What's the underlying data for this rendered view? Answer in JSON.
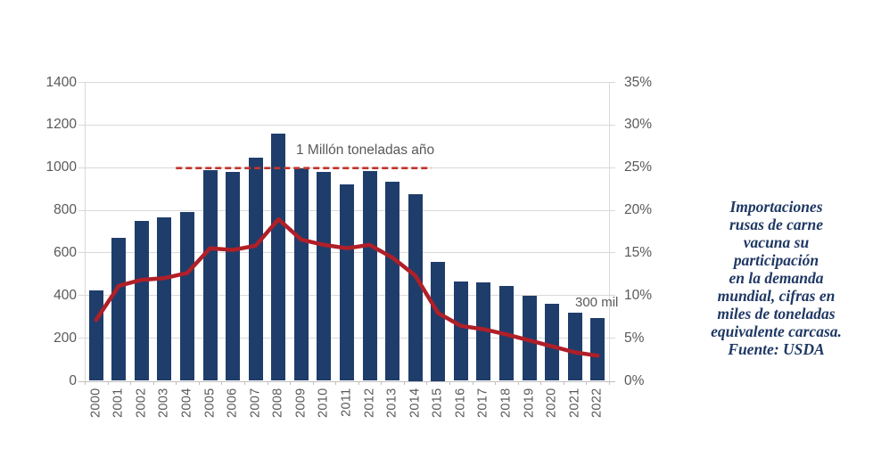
{
  "chart_data": {
    "type": "bar",
    "combo": "bar+line",
    "categories": [
      "2000",
      "2001",
      "2002",
      "2003",
      "2004",
      "2005",
      "2006",
      "2007",
      "2008",
      "2009",
      "2010",
      "2011",
      "2012",
      "2013",
      "2014",
      "2015",
      "2016",
      "2017",
      "2018",
      "2019",
      "2020",
      "2021",
      "2022"
    ],
    "series": [
      {
        "name": "importaciones-miles-toneladas",
        "type": "bar",
        "axis": "left",
        "values": [
          425,
          670,
          750,
          765,
          790,
          990,
          978,
          1045,
          1160,
          997,
          978,
          920,
          985,
          935,
          875,
          560,
          468,
          463,
          445,
          398,
          360,
          320,
          296
        ]
      },
      {
        "name": "participacion-demanda-mundial-pct",
        "type": "line",
        "axis": "right",
        "values": [
          7.2,
          11.2,
          11.9,
          12.1,
          12.7,
          15.6,
          15.4,
          15.9,
          19.0,
          16.6,
          16.0,
          15.6,
          16.0,
          14.5,
          12.4,
          8.0,
          6.5,
          6.1,
          5.5,
          4.8,
          4.1,
          3.4,
          3.0
        ]
      }
    ],
    "left_axis": {
      "min": 0,
      "max": 1400,
      "tick_step": 200,
      "tick_labels_top_to_bottom": [
        "1400",
        "1200",
        "1000",
        "800",
        "600",
        "400",
        "200",
        "0"
      ]
    },
    "right_axis": {
      "min": 0,
      "max": 35,
      "tick_step": 5,
      "tick_labels_top_to_bottom": [
        "35%",
        "30%",
        "25%",
        "20%",
        "15%",
        "10%",
        "5%",
        "0%"
      ]
    },
    "grid": true,
    "legend": false,
    "reference_line": {
      "value": 1000,
      "label": "1 Millón toneladas año",
      "start_category": "2004",
      "end_category": "2014"
    },
    "annotation_300mil": {
      "text": "300 mil"
    }
  },
  "side_note": {
    "lines": [
      "Importaciones",
      "rusas de carne",
      "vacuna su",
      "participación",
      "en la demanda",
      "mundial, cifras en",
      "miles de toneladas",
      "equivalente carcasa.",
      "Fuente: USDA"
    ]
  },
  "colors": {
    "bar": "#1f3d6b",
    "line": "#b01f28",
    "reference_line": "#c1352c",
    "grid": "#d9d9d9",
    "axis": "#bfbfbf",
    "axis_text": "#595959",
    "annotation_text": "#595959",
    "side_note_text": "#1f3864"
  }
}
